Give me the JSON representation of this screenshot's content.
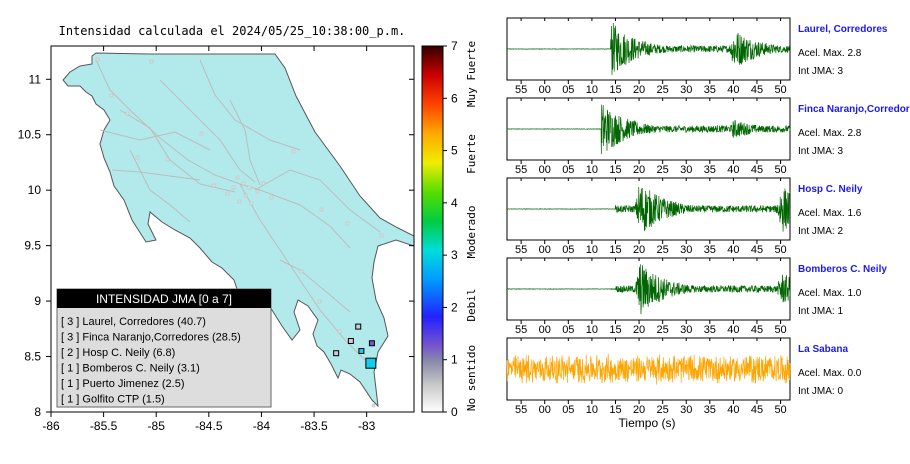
{
  "map": {
    "title": "Intensidad calculada el 2024/05/25_10:38:00_p.m.",
    "xticks": [
      "-86",
      "-85.5",
      "-85",
      "-84.5",
      "-84",
      "-83.5",
      "-83"
    ],
    "yticks": [
      "11",
      "10.5",
      "10",
      "9.5",
      "9",
      "8.5",
      "8"
    ],
    "legend": {
      "title": "INTENSIDAD JMA [0 a 7]",
      "items": [
        "[ 3 ]  Laurel, Corredores (40.7)",
        "[ 3 ]  Finca Naranjo,Corredores (28.5)",
        "[ 2 ]  Hosp C. Neily (6.8)",
        "[ 1 ]  Bomberos C. Neily (3.1)",
        "[ 1 ]  Puerto Jimenez (2.5)",
        "[ 1 ]  Golfito CTP (1.5)"
      ]
    },
    "colorbar": {
      "ticks": [
        "7",
        "6",
        "5",
        "4",
        "3",
        "2",
        "1",
        "0"
      ],
      "labels": [
        "Muy Fuerte",
        "Fuerte",
        "Moderado",
        "Debil",
        "No sentido"
      ]
    },
    "colors": {
      "land": "#b2eaec",
      "outline": "#444444",
      "accent_box": "#11ccee"
    }
  },
  "chart_data": [
    {
      "type": "map",
      "xlim": [
        -86.0,
        -82.55
      ],
      "ylim": [
        8.0,
        11.3
      ],
      "stations": [
        {
          "name": "Laurel, Corredores",
          "lon": -82.96,
          "lat": 8.44,
          "intensity": 3
        },
        {
          "name": "Finca Naranjo,Corredores",
          "lon": -83.05,
          "lat": 8.55,
          "intensity": 3
        },
        {
          "name": "Hosp C. Neily",
          "lon": -82.95,
          "lat": 8.62,
          "intensity": 2
        },
        {
          "name": "Bomberos C. Neily",
          "lon": -83.08,
          "lat": 8.77,
          "intensity": 1
        },
        {
          "name": "Puerto Jimenez",
          "lon": -83.29,
          "lat": 8.53,
          "intensity": 1
        },
        {
          "name": "Golfito CTP",
          "lon": -83.15,
          "lat": 8.64,
          "intensity": 1
        }
      ]
    },
    {
      "type": "line",
      "xlabel": "Tiempo (s)",
      "xticks": [
        "55",
        "00",
        "05",
        "10",
        "15",
        "20",
        "25",
        "30",
        "35",
        "40",
        "45",
        "50"
      ],
      "series": [
        {
          "name": "Laurel, Corredores",
          "acel": "Acel. Max. 2.8",
          "jma": "Int JMA: 3",
          "color": "#006600",
          "onset": 14,
          "bursts": [
            [
              14,
              1.0
            ],
            [
              40,
              0.75
            ]
          ]
        },
        {
          "name": "Finca Naranjo,Corredores",
          "acel": "Acel. Max. 2.8",
          "jma": "Int JMA: 3",
          "color": "#006600",
          "onset": 12,
          "bursts": [
            [
              12,
              1.0
            ],
            [
              40,
              0.35
            ]
          ]
        },
        {
          "name": "Hosp C. Neily",
          "acel": "Acel. Max. 1.6",
          "jma": "Int JMA: 2",
          "color": "#006600",
          "onset": 15,
          "bursts": [
            [
              20,
              1.0
            ],
            [
              50,
              0.9
            ]
          ]
        },
        {
          "name": "Bomberos C. Neily",
          "acel": "Acel. Max. 1.0",
          "jma": "Int JMA: 1",
          "color": "#006600",
          "onset": 15,
          "bursts": [
            [
              20,
              1.0
            ],
            [
              50,
              0.6
            ]
          ]
        },
        {
          "name": "La Sabana",
          "acel": "Acel. Max. 0.0",
          "jma": "Int JMA: 0",
          "color": "#ffa500",
          "onset": -8,
          "bursts": []
        }
      ]
    }
  ]
}
